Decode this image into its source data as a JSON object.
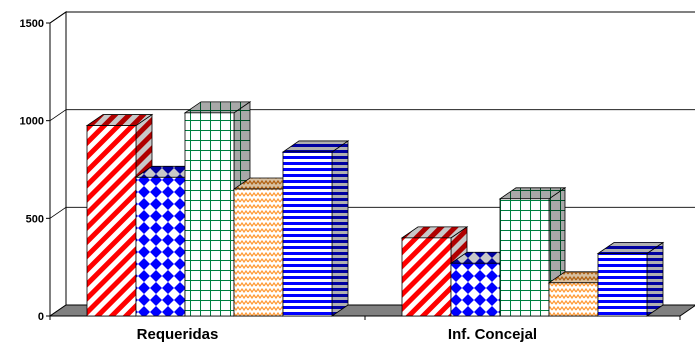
{
  "chart_data": {
    "type": "bar",
    "title": "",
    "xlabel": "",
    "ylabel": "",
    "ylim": [
      0,
      1500
    ],
    "yticks": [
      0,
      500,
      1000,
      1500
    ],
    "grid": true,
    "categories": [
      "Requeridas",
      "Inf. Concejal"
    ],
    "series": [
      {
        "values": [
          975,
          400
        ],
        "color": "#ff0000",
        "pattern": "diagonal-stripes"
      },
      {
        "values": [
          710,
          270
        ],
        "color": "#0000ff",
        "pattern": "diamonds"
      },
      {
        "values": [
          1040,
          600
        ],
        "color": "#008040",
        "pattern": "grid"
      },
      {
        "values": [
          650,
          170
        ],
        "color": "#ff9933",
        "pattern": "zigzag"
      },
      {
        "values": [
          840,
          320
        ],
        "color": "#0000ff",
        "pattern": "horizontal-stripes"
      }
    ]
  }
}
